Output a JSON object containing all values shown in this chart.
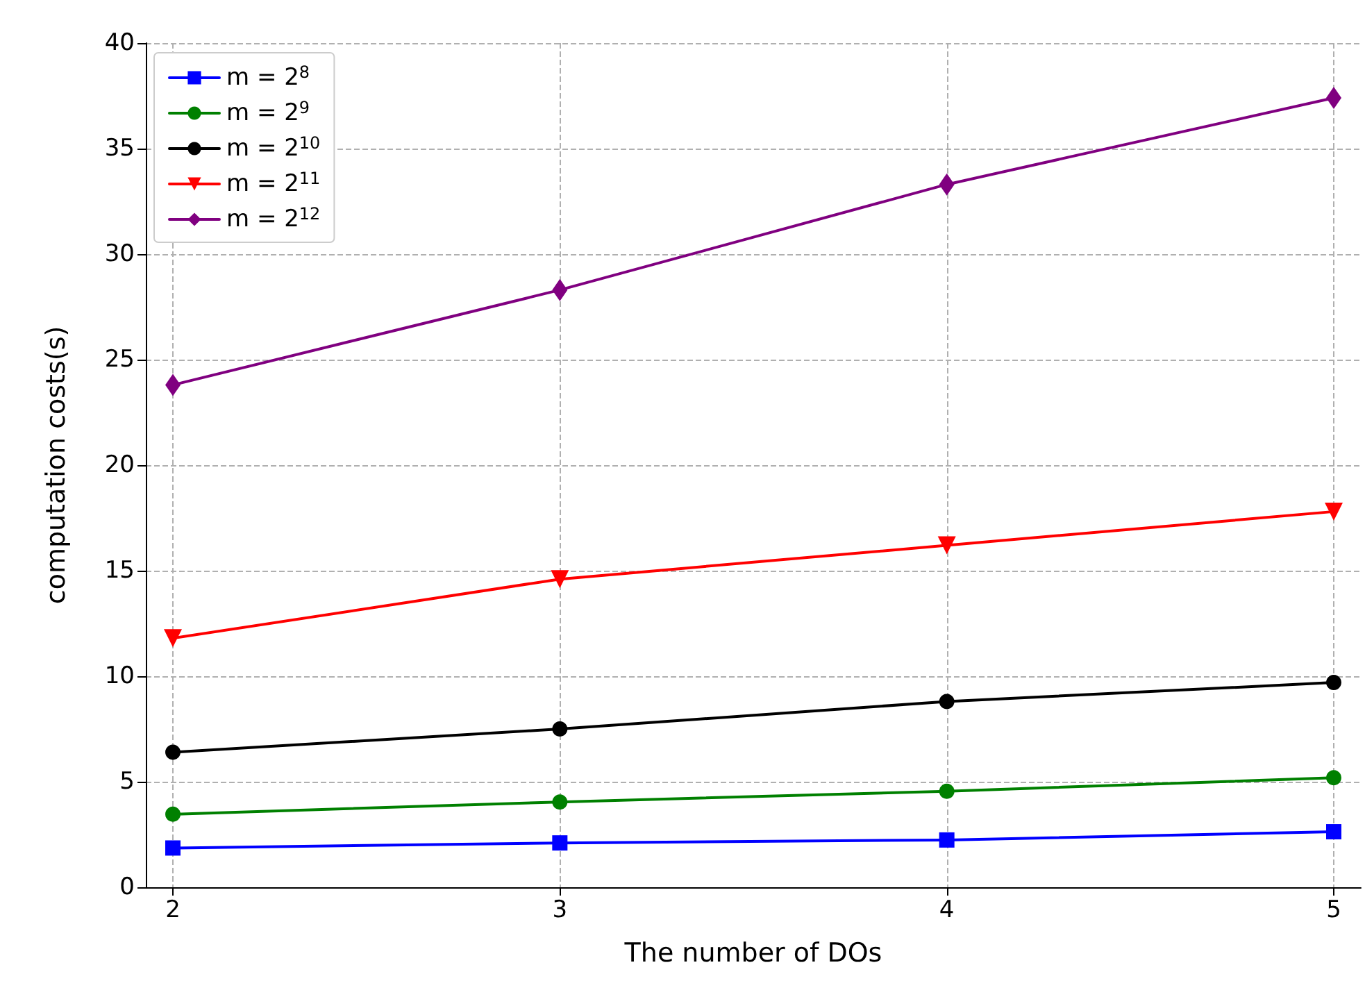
{
  "chart_data": {
    "type": "line",
    "xlabel": "The number of DOs",
    "ylabel": "computation costs(s)",
    "x": [
      2,
      3,
      4,
      5
    ],
    "xlim": [
      1.93,
      5.07
    ],
    "xticks": [
      2,
      3,
      4,
      5
    ],
    "ylim": [
      0,
      40
    ],
    "yticks": [
      0,
      5,
      10,
      15,
      20,
      25,
      30,
      35,
      40
    ],
    "grid": true,
    "legend": "top left",
    "line_style": "solid",
    "series": [
      {
        "name": "m = 2$^{8}$",
        "color": "#0000ff",
        "marker": "square",
        "values": [
          1.86,
          2.1,
          2.24,
          2.63
        ]
      },
      {
        "name": "m = 2$^{9}$",
        "color": "#008000",
        "marker": "circle",
        "values": [
          3.46,
          4.04,
          4.55,
          5.19
        ]
      },
      {
        "name": "m = 2$^{10}$",
        "color": "#000000",
        "marker": "circle",
        "values": [
          6.4,
          7.5,
          8.8,
          9.7
        ]
      },
      {
        "name": "m = 2$^{11}$",
        "color": "#ff0000",
        "marker": "triangle",
        "values": [
          11.8,
          14.6,
          16.2,
          17.8
        ]
      },
      {
        "name": "m = 2$^{12}$",
        "color": "#800080",
        "marker": "diamond",
        "values": [
          23.8,
          28.3,
          33.3,
          37.4
        ]
      }
    ]
  }
}
